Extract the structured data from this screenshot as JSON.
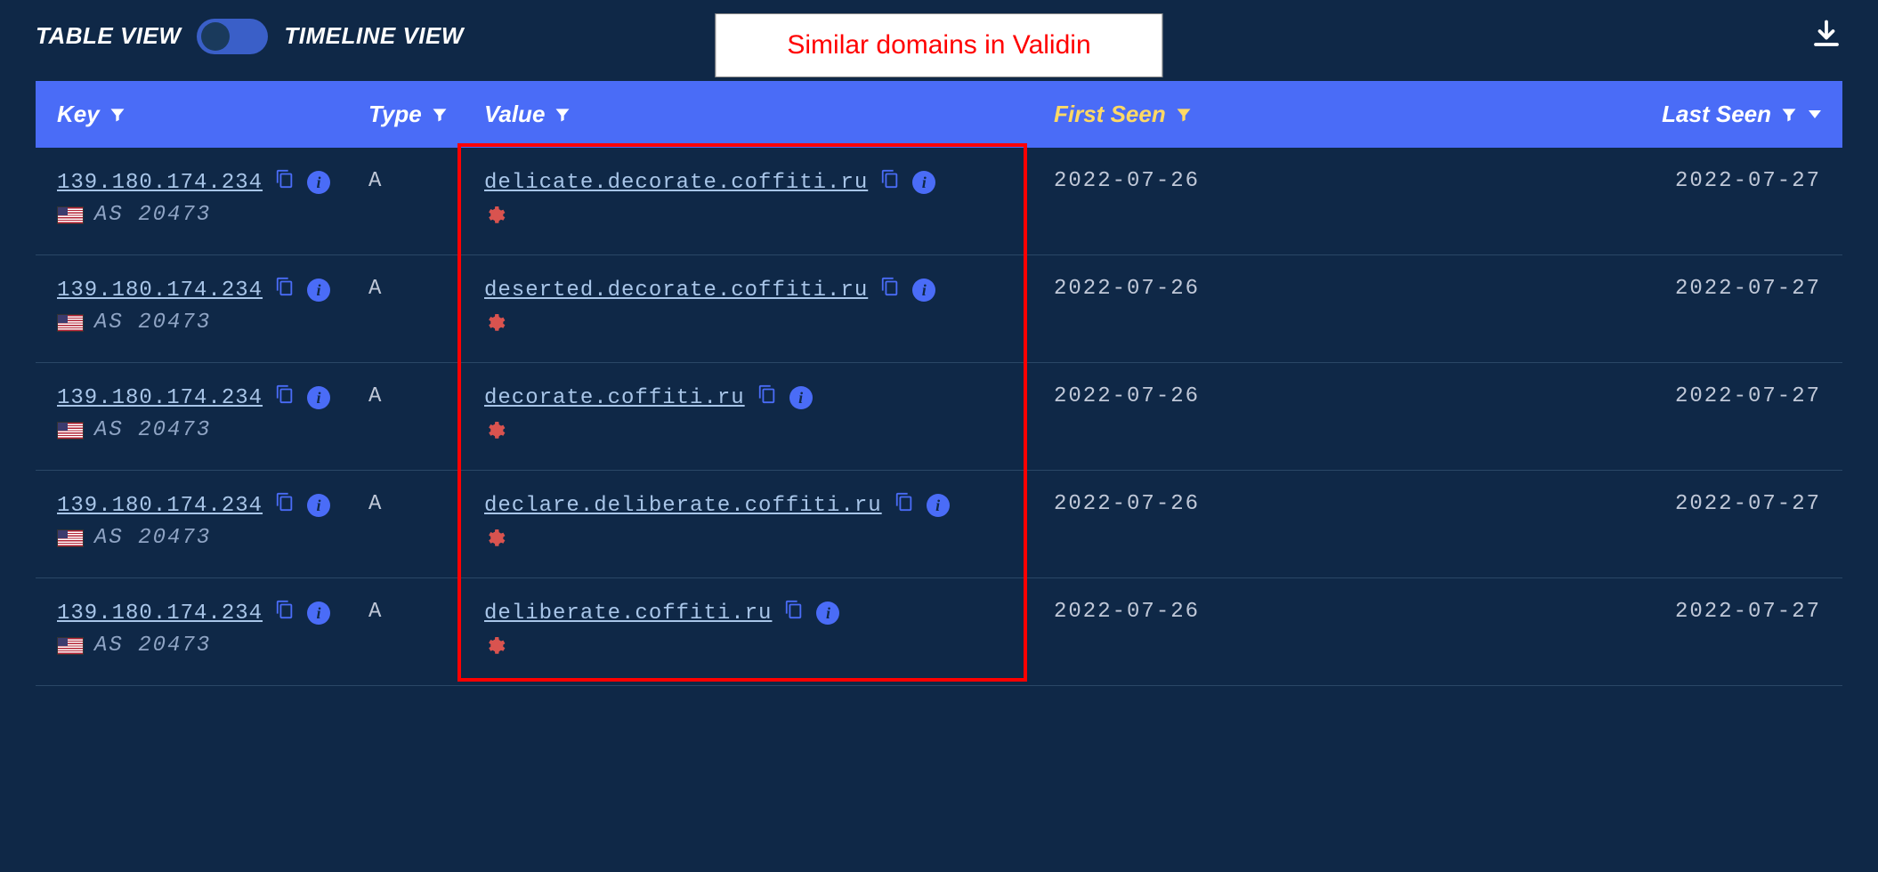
{
  "colors": {
    "background": "#0f2847",
    "header_bg": "#4a6cf7",
    "link": "#a8c5e8",
    "accent": "#4a6cf7",
    "muted": "#8fa4c4",
    "row_border": "#2a4766",
    "highlight_border": "#ff0000",
    "first_seen_header": "#ffd966",
    "threat_icon": "#d9534f",
    "annotation_text": "#ff0000",
    "annotation_bg": "#ffffff"
  },
  "toolbar": {
    "table_view_label": "TABLE VIEW",
    "timeline_view_label": "TIMELINE VIEW",
    "toggle_state": "table"
  },
  "annotation": {
    "text": "Similar domains in Validin"
  },
  "headers": {
    "key": "Key",
    "type": "Type",
    "value": "Value",
    "first_seen": "First Seen",
    "last_seen": "Last Seen"
  },
  "rows": [
    {
      "ip": "139.180.174.234",
      "asn": "AS 20473",
      "country": "us",
      "type": "A",
      "domain": "delicate.decorate.coffiti.ru",
      "first_seen": "2022-07-26",
      "last_seen": "2022-07-27"
    },
    {
      "ip": "139.180.174.234",
      "asn": "AS 20473",
      "country": "us",
      "type": "A",
      "domain": "deserted.decorate.coffiti.ru",
      "first_seen": "2022-07-26",
      "last_seen": "2022-07-27"
    },
    {
      "ip": "139.180.174.234",
      "asn": "AS 20473",
      "country": "us",
      "type": "A",
      "domain": "decorate.coffiti.ru",
      "first_seen": "2022-07-26",
      "last_seen": "2022-07-27"
    },
    {
      "ip": "139.180.174.234",
      "asn": "AS 20473",
      "country": "us",
      "type": "A",
      "domain": "declare.deliberate.coffiti.ru",
      "first_seen": "2022-07-26",
      "last_seen": "2022-07-27"
    },
    {
      "ip": "139.180.174.234",
      "asn": "AS 20473",
      "country": "us",
      "type": "A",
      "domain": "deliberate.coffiti.ru",
      "first_seen": "2022-07-26",
      "last_seen": "2022-07-27"
    }
  ]
}
